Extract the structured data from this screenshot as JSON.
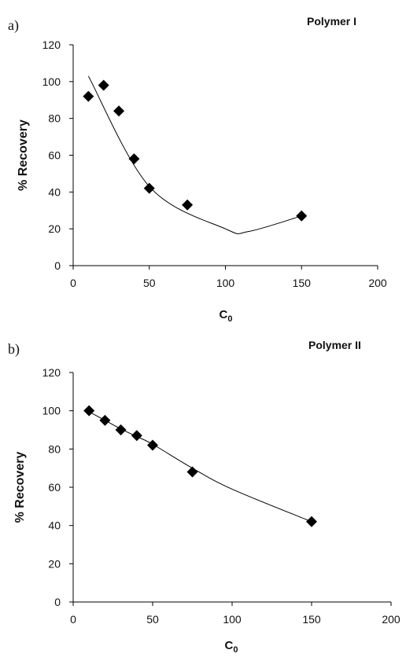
{
  "chart_data": [
    {
      "panel_label": "a)",
      "type": "scatter",
      "title": "Polymer I",
      "xlabel": "C",
      "xlabel_subscript": "0",
      "ylabel": "% Recovery",
      "xlim": [
        0,
        200
      ],
      "ylim": [
        0,
        120
      ],
      "xticks": [
        0,
        50,
        100,
        150,
        200
      ],
      "yticks": [
        0,
        20,
        40,
        60,
        80,
        100,
        120
      ],
      "grid": false,
      "marker": "diamond",
      "series": [
        {
          "x": [
            10,
            20,
            30,
            40,
            50,
            75,
            150
          ],
          "y": [
            92,
            98,
            84,
            58,
            42,
            33,
            27
          ]
        }
      ],
      "trendline": {
        "type": "polynomial",
        "x_range": [
          10,
          150
        ],
        "points": [
          [
            10,
            103
          ],
          [
            50,
            43
          ],
          [
            100,
            20
          ],
          [
            115,
            18.5
          ],
          [
            150,
            27
          ]
        ]
      }
    },
    {
      "panel_label": "b)",
      "type": "scatter",
      "title": "Polymer II",
      "xlabel": "C",
      "xlabel_subscript": "0",
      "ylabel": "% Recovery",
      "xlim": [
        0,
        200
      ],
      "ylim": [
        0,
        120
      ],
      "xticks": [
        0,
        50,
        100,
        150,
        200
      ],
      "yticks": [
        0,
        20,
        40,
        60,
        80,
        100,
        120
      ],
      "grid": false,
      "marker": "diamond",
      "series": [
        {
          "x": [
            10,
            20,
            30,
            40,
            50,
            75,
            150
          ],
          "y": [
            100,
            95,
            90,
            87,
            82,
            68,
            42
          ]
        }
      ],
      "trendline": {
        "type": "smooth",
        "x_range": [
          10,
          150
        ],
        "points": [
          [
            10,
            99.5
          ],
          [
            20,
            95
          ],
          [
            30,
            90.5
          ],
          [
            40,
            86.5
          ],
          [
            50,
            82.5
          ],
          [
            75,
            70
          ],
          [
            100,
            59
          ],
          [
            150,
            42
          ]
        ]
      }
    }
  ]
}
